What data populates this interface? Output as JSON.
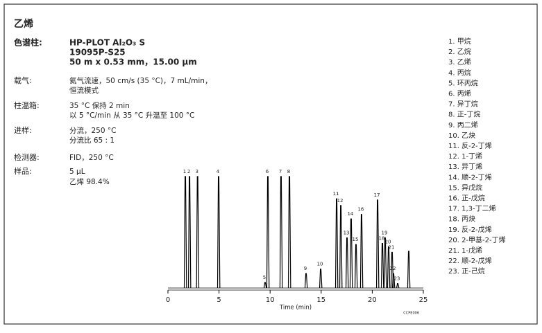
{
  "header": {
    "title": "乙烯"
  },
  "conditions": [
    {
      "label": "色谱柱:",
      "lines": [
        "HP-PLOT Al₂O₃ S",
        "19095P-S25",
        "50 m x 0.53 mm，15.00 μm"
      ]
    },
    {
      "label": "载气:",
      "lines": [
        "氦气流速，50 cm/s (35 °C)，7 mL/min，",
        "恒流模式"
      ]
    },
    {
      "label": "柱温箱:",
      "lines": [
        "35 °C 保持 2 min",
        "以 5 °C/min 从 35 °C 升温至 100 °C"
      ]
    },
    {
      "label": "进样:",
      "lines": [
        "分流，250 °C",
        "分流比 65 : 1"
      ]
    },
    {
      "label": "检测器:",
      "lines": [
        "FID，250 °C"
      ]
    },
    {
      "label": "样品:",
      "lines": [
        "5 μL",
        "乙烯 98.4%"
      ]
    }
  ],
  "compounds": [
    "1. 甲烷",
    "2. 乙烷",
    "3. 乙烯",
    "4. 丙烷",
    "5. 环丙烷",
    "6. 丙烯",
    "7. 异丁烷",
    "8. 正-丁烷",
    "9. 丙二烯",
    "10. 乙炔",
    "11. 反-2-丁烯",
    "12. 1-丁烯",
    "13. 异丁烯",
    "14. 顺-2-丁烯",
    "15. 异戊烷",
    "16. 正-戊烷",
    "17. 1,3-丁二烯",
    "18. 丙炔",
    "19. 反-2-戊烯",
    "20. 2-甲基-2-丁烯",
    "21. 1-戊烯",
    "22. 顺-2-戊烯",
    "23. 正-己烷"
  ],
  "chart_data": {
    "type": "chromatogram",
    "x": [
      1.7,
      2.11,
      2.9,
      4.96,
      9.51,
      9.78,
      11.07,
      11.89,
      13.52,
      14.95,
      16.51,
      16.92,
      17.53,
      17.93,
      18.41,
      18.95,
      20.52,
      20.99,
      21.26,
      21.6,
      21.94,
      22.08,
      22.49,
      23.57
    ],
    "values": [
      100,
      100,
      100,
      100,
      5,
      100,
      100,
      100,
      13,
      17,
      80,
      74,
      45,
      62,
      39,
      66,
      79,
      40,
      45,
      37,
      32,
      13,
      4,
      33
    ],
    "peak_labels": [
      "1",
      "2",
      "3",
      "4",
      "5",
      "6",
      "7",
      "8",
      "9",
      "10",
      "11",
      "12",
      "13",
      "14",
      "15",
      "16",
      "17",
      "18",
      "19",
      "20",
      "21",
      "22",
      "23",
      null
    ],
    "xlim": [
      0,
      25
    ],
    "xticks": [
      0,
      5,
      10,
      15,
      20,
      25
    ],
    "ylim": [
      0,
      100
    ],
    "xlabel": "Time (min)",
    "code": "CCPE006",
    "color": "#000000"
  }
}
